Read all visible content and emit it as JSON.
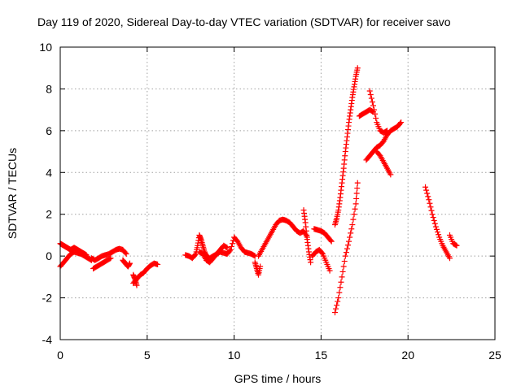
{
  "chart_data": {
    "type": "scatter",
    "marker": "plus",
    "title": "Day 119 of 2020, Sidereal Day-to-day VTEC variation (SDTVAR) for receiver savo",
    "xlabel": "GPS time / hours",
    "ylabel": "SDTVAR / TECUs",
    "xlim": [
      0,
      25
    ],
    "ylim": [
      -4,
      10
    ],
    "xticks": [
      0,
      5,
      10,
      15,
      20,
      25
    ],
    "yticks": [
      -4,
      -2,
      0,
      2,
      4,
      6,
      8,
      10
    ],
    "grid": true,
    "series": [
      {
        "name": "SDTVAR",
        "color": "#ff0000",
        "segments": [
          {
            "x": [
              0.0,
              0.1,
              0.2,
              0.3,
              0.4,
              0.5,
              0.6,
              0.7,
              0.8,
              0.9,
              1.0,
              1.1,
              1.2,
              1.3,
              1.4,
              1.5
            ],
            "y": [
              0.6,
              0.55,
              0.5,
              0.45,
              0.4,
              0.35,
              0.3,
              0.35,
              0.4,
              0.35,
              0.3,
              0.25,
              0.2,
              0.15,
              0.1,
              0.05
            ]
          },
          {
            "x": [
              0.0,
              0.2,
              0.4,
              0.6,
              0.8,
              1.0,
              1.2,
              1.4,
              1.6,
              1.8
            ],
            "y": [
              -0.5,
              -0.3,
              -0.1,
              0.1,
              0.2,
              0.15,
              0.1,
              0.0,
              -0.1,
              -0.2
            ]
          },
          {
            "x": [
              1.8,
              2.0,
              2.2,
              2.4,
              2.6,
              2.8,
              3.0,
              3.2,
              3.4,
              3.6,
              3.8
            ],
            "y": [
              -0.1,
              -0.2,
              -0.1,
              0.0,
              0.05,
              0.1,
              0.2,
              0.3,
              0.35,
              0.3,
              0.1
            ]
          },
          {
            "x": [
              1.9,
              2.1,
              2.3,
              2.5,
              2.7,
              2.9
            ],
            "y": [
              -0.6,
              -0.5,
              -0.4,
              -0.3,
              -0.2,
              -0.1
            ]
          },
          {
            "x": [
              3.6,
              3.7,
              3.8,
              3.9,
              4.0
            ],
            "y": [
              -0.2,
              -0.3,
              -0.4,
              -0.5,
              -0.35
            ]
          },
          {
            "x": [
              4.2,
              4.4,
              4.6,
              4.8,
              5.0,
              5.2,
              5.4,
              5.6
            ],
            "y": [
              -1.3,
              -1.1,
              -0.9,
              -0.8,
              -0.6,
              -0.45,
              -0.35,
              -0.4
            ]
          },
          {
            "x": [
              4.2,
              4.3,
              4.4
            ],
            "y": [
              -0.9,
              -1.1,
              -1.4
            ]
          },
          {
            "x": [
              7.2,
              7.4,
              7.6,
              7.8,
              7.9,
              8.0,
              8.1,
              8.2,
              8.3,
              8.4,
              8.6,
              8.8,
              9.0,
              9.2,
              9.4,
              9.6,
              9.8,
              10.0,
              10.2,
              10.4,
              10.6,
              10.8,
              11.0,
              11.2
            ],
            "y": [
              0.05,
              0.0,
              -0.1,
              0.1,
              0.5,
              1.0,
              0.8,
              0.5,
              0.2,
              0.0,
              -0.1,
              0.0,
              0.1,
              0.2,
              0.15,
              0.1,
              0.3,
              0.9,
              0.7,
              0.4,
              0.2,
              0.15,
              0.1,
              0.0
            ]
          },
          {
            "x": [
              8.0,
              8.2,
              8.4,
              8.6,
              8.8,
              9.0,
              9.2,
              9.4,
              9.6
            ],
            "y": [
              0.2,
              0.1,
              -0.2,
              -0.3,
              -0.1,
              0.1,
              0.3,
              0.5,
              0.4
            ]
          },
          {
            "x": [
              11.2,
              11.3,
              11.4,
              11.5
            ],
            "y": [
              -0.3,
              -0.6,
              -0.9,
              -0.5
            ]
          },
          {
            "x": [
              11.4,
              11.6,
              11.8,
              12.0,
              12.2,
              12.4,
              12.6,
              12.8,
              13.0,
              13.2,
              13.4,
              13.6,
              13.8,
              14.0,
              14.2
            ],
            "y": [
              0.0,
              0.3,
              0.6,
              0.9,
              1.2,
              1.5,
              1.7,
              1.75,
              1.7,
              1.6,
              1.4,
              1.2,
              1.1,
              1.2,
              0.9
            ]
          },
          {
            "x": [
              14.0,
              14.1,
              14.2,
              14.3,
              14.4
            ],
            "y": [
              2.2,
              1.6,
              0.8,
              0.2,
              -0.3
            ]
          },
          {
            "x": [
              14.5,
              14.7,
              14.9,
              15.1,
              15.3,
              15.5
            ],
            "y": [
              0.0,
              0.2,
              0.3,
              0.1,
              -0.3,
              -0.7
            ]
          },
          {
            "x": [
              14.6,
              14.8,
              15.0,
              15.2,
              15.4,
              15.6
            ],
            "y": [
              1.3,
              1.25,
              1.2,
              1.1,
              0.9,
              0.7
            ]
          },
          {
            "x": [
              15.8,
              16.0,
              16.2,
              16.4,
              16.6,
              16.8,
              17.0,
              17.1
            ],
            "y": [
              -2.7,
              -2.0,
              -1.0,
              0.0,
              0.7,
              1.5,
              2.5,
              3.5
            ]
          },
          {
            "x": [
              15.8,
              15.9,
              16.0,
              16.1,
              16.2,
              16.3,
              16.4,
              16.5,
              16.6,
              16.7,
              16.8,
              16.9,
              17.0,
              17.1
            ],
            "y": [
              1.5,
              1.8,
              2.2,
              2.8,
              3.5,
              4.2,
              5.0,
              5.7,
              6.4,
              7.0,
              7.6,
              8.1,
              8.6,
              9.0
            ]
          },
          {
            "x": [
              17.2,
              17.4,
              17.6,
              17.8,
              18.0
            ],
            "y": [
              6.7,
              6.8,
              6.9,
              7.0,
              6.9
            ]
          },
          {
            "x": [
              17.6,
              17.8,
              18.0,
              18.2,
              18.4,
              18.6,
              18.8,
              19.0,
              19.2,
              19.4,
              19.6
            ],
            "y": [
              4.6,
              4.8,
              5.0,
              5.2,
              5.3,
              5.5,
              5.8,
              6.0,
              6.1,
              6.2,
              6.4
            ]
          },
          {
            "x": [
              17.8,
              18.0,
              18.2,
              18.4,
              18.6,
              18.8
            ],
            "y": [
              7.9,
              7.2,
              6.4,
              6.0,
              5.9,
              6.0
            ]
          },
          {
            "x": [
              18.2,
              18.4,
              18.6,
              18.8,
              19.0
            ],
            "y": [
              5.0,
              4.8,
              4.5,
              4.2,
              3.9
            ]
          },
          {
            "x": [
              21.0,
              21.2,
              21.4,
              21.6,
              21.8,
              22.0,
              22.2,
              22.4
            ],
            "y": [
              3.3,
              2.7,
              2.0,
              1.4,
              0.9,
              0.5,
              0.2,
              -0.1
            ]
          },
          {
            "x": [
              22.4,
              22.6,
              22.8
            ],
            "y": [
              1.0,
              0.6,
              0.5
            ]
          }
        ]
      }
    ]
  }
}
